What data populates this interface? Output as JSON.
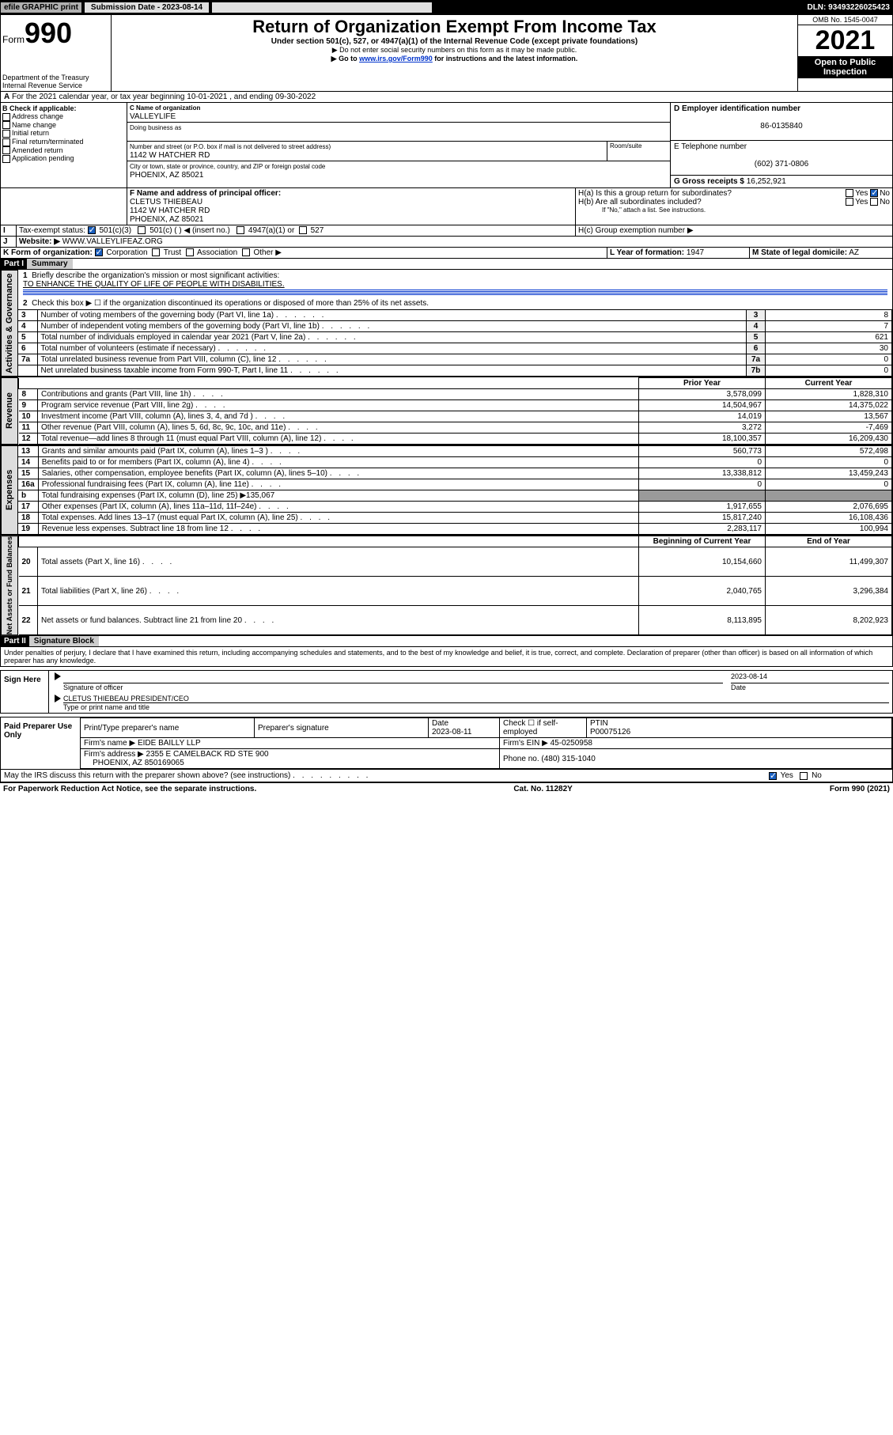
{
  "topbar": {
    "efile": "efile GRAPHIC print",
    "submission_label": "Submission Date - 2023-08-14",
    "dln": "DLN: 93493226025423"
  },
  "header": {
    "form_label": "Form",
    "form_number": "990",
    "dept": "Department of the Treasury\nInternal Revenue Service",
    "title": "Return of Organization Exempt From Income Tax",
    "subtitle": "Under section 501(c), 527, or 4947(a)(1) of the Internal Revenue Code (except private foundations)",
    "note1": "▶ Do not enter social security numbers on this form as it may be made public.",
    "note2_pre": "▶ Go to ",
    "note2_link": "www.irs.gov/Form990",
    "note2_post": " for instructions and the latest information.",
    "omb": "OMB No. 1545-0047",
    "year": "2021",
    "open": "Open to Public Inspection"
  },
  "periodA": "For the 2021 calendar year, or tax year beginning 10-01-2021   , and ending 09-30-2022",
  "sectionB": {
    "header": "B Check if applicable:",
    "opts": [
      "Address change",
      "Name change",
      "Initial return",
      "Final return/terminated",
      "Amended return",
      "Application pending"
    ]
  },
  "sectionC": {
    "label": "C Name of organization",
    "name": "VALLEYLIFE",
    "dba_label": "Doing business as",
    "addr_label": "Number and street (or P.O. box if mail is not delivered to street address)",
    "room_label": "Room/suite",
    "addr": "1142 W HATCHER RD",
    "city_label": "City or town, state or province, country, and ZIP or foreign postal code",
    "city": "PHOENIX, AZ  85021"
  },
  "sectionD": {
    "label": "D Employer identification number",
    "ein": "86-0135840"
  },
  "sectionE": {
    "label": "E Telephone number",
    "phone": "(602) 371-0806"
  },
  "sectionG": {
    "label": "G Gross receipts $",
    "amount": "16,252,921"
  },
  "sectionF": {
    "label": "F Name and address of principal officer:",
    "name": "CLETUS THIEBEAU",
    "addr1": "1142 W HATCHER RD",
    "addr2": "PHOENIX, AZ  85021"
  },
  "sectionH": {
    "a": "H(a)  Is this a group return for subordinates?",
    "b": "H(b)  Are all subordinates included?",
    "b_note": "If \"No,\" attach a list. See instructions.",
    "c": "H(c)  Group exemption number ▶",
    "yes": "Yes",
    "no": "No"
  },
  "sectionI": {
    "label": "Tax-exempt status:",
    "opt1": "501(c)(3)",
    "opt2": "501(c) (  ) ◀ (insert no.)",
    "opt3": "4947(a)(1) or",
    "opt4": "527"
  },
  "sectionJ": {
    "label": "Website: ▶",
    "url": "WWW.VALLEYLIFEAZ.ORG"
  },
  "sectionK": {
    "label": "K Form of organization:",
    "opts": [
      "Corporation",
      "Trust",
      "Association",
      "Other ▶"
    ]
  },
  "sectionL": {
    "label": "L Year of formation:",
    "val": "1947"
  },
  "sectionM": {
    "label": "M State of legal domicile:",
    "val": "AZ"
  },
  "partI": {
    "header": "Part I",
    "title": "Summary",
    "tabs": {
      "gov": "Activities & Governance",
      "rev": "Revenue",
      "exp": "Expenses",
      "net": "Net Assets or Fund Balances"
    },
    "line1_label": "Briefly describe the organization's mission or most significant activities:",
    "line1_val": "TO ENHANCE THE QUALITY OF LIFE OF PEOPLE WITH DISABILITIES.",
    "line2": "Check this box ▶ ☐ if the organization discontinued its operations or disposed of more than 25% of its net assets.",
    "col_prior": "Prior Year",
    "col_current": "Current Year",
    "col_beg": "Beginning of Current Year",
    "col_end": "End of Year",
    "rows_gov": [
      {
        "n": "3",
        "text": "Number of voting members of the governing body (Part VI, line 1a)",
        "lbl": "3",
        "val": "8"
      },
      {
        "n": "4",
        "text": "Number of independent voting members of the governing body (Part VI, line 1b)",
        "lbl": "4",
        "val": "7"
      },
      {
        "n": "5",
        "text": "Total number of individuals employed in calendar year 2021 (Part V, line 2a)",
        "lbl": "5",
        "val": "621"
      },
      {
        "n": "6",
        "text": "Total number of volunteers (estimate if necessary)",
        "lbl": "6",
        "val": "30"
      },
      {
        "n": "7a",
        "text": "Total unrelated business revenue from Part VIII, column (C), line 12",
        "lbl": "7a",
        "val": "0"
      },
      {
        "n": "",
        "text": "Net unrelated business taxable income from Form 990-T, Part I, line 11",
        "lbl": "7b",
        "val": "0"
      }
    ],
    "rows_rev": [
      {
        "n": "8",
        "text": "Contributions and grants (Part VIII, line 1h)",
        "p": "3,578,099",
        "c": "1,828,310"
      },
      {
        "n": "9",
        "text": "Program service revenue (Part VIII, line 2g)",
        "p": "14,504,967",
        "c": "14,375,022"
      },
      {
        "n": "10",
        "text": "Investment income (Part VIII, column (A), lines 3, 4, and 7d )",
        "p": "14,019",
        "c": "13,567"
      },
      {
        "n": "11",
        "text": "Other revenue (Part VIII, column (A), lines 5, 6d, 8c, 9c, 10c, and 11e)",
        "p": "3,272",
        "c": "-7,469"
      },
      {
        "n": "12",
        "text": "Total revenue—add lines 8 through 11 (must equal Part VIII, column (A), line 12)",
        "p": "18,100,357",
        "c": "16,209,430"
      }
    ],
    "rows_exp": [
      {
        "n": "13",
        "text": "Grants and similar amounts paid (Part IX, column (A), lines 1–3 )",
        "p": "560,773",
        "c": "572,498"
      },
      {
        "n": "14",
        "text": "Benefits paid to or for members (Part IX, column (A), line 4)",
        "p": "0",
        "c": "0"
      },
      {
        "n": "15",
        "text": "Salaries, other compensation, employee benefits (Part IX, column (A), lines 5–10)",
        "p": "13,338,812",
        "c": "13,459,243"
      },
      {
        "n": "16a",
        "text": "Professional fundraising fees (Part IX, column (A), line 11e)",
        "p": "0",
        "c": "0"
      },
      {
        "n": "b",
        "text": "Total fundraising expenses (Part IX, column (D), line 25) ▶135,067",
        "p": "",
        "c": "",
        "gray": true
      },
      {
        "n": "17",
        "text": "Other expenses (Part IX, column (A), lines 11a–11d, 11f–24e)",
        "p": "1,917,655",
        "c": "2,076,695"
      },
      {
        "n": "18",
        "text": "Total expenses. Add lines 13–17 (must equal Part IX, column (A), line 25)",
        "p": "15,817,240",
        "c": "16,108,436"
      },
      {
        "n": "19",
        "text": "Revenue less expenses. Subtract line 18 from line 12",
        "p": "2,283,117",
        "c": "100,994"
      }
    ],
    "rows_net": [
      {
        "n": "20",
        "text": "Total assets (Part X, line 16)",
        "p": "10,154,660",
        "c": "11,499,307"
      },
      {
        "n": "21",
        "text": "Total liabilities (Part X, line 26)",
        "p": "2,040,765",
        "c": "3,296,384"
      },
      {
        "n": "22",
        "text": "Net assets or fund balances. Subtract line 21 from line 20",
        "p": "8,113,895",
        "c": "8,202,923"
      }
    ]
  },
  "partII": {
    "header": "Part II",
    "title": "Signature Block",
    "penalties": "Under penalties of perjury, I declare that I have examined this return, including accompanying schedules and statements, and to the best of my knowledge and belief, it is true, correct, and complete. Declaration of preparer (other than officer) is based on all information of which preparer has any knowledge.",
    "sign_here": "Sign Here",
    "sig_officer": "Signature of officer",
    "date": "Date",
    "sig_date": "2023-08-14",
    "officer_name": "CLETUS THIEBEAU  PRESIDENT/CEO",
    "type_name": "Type or print name and title",
    "paid": "Paid Preparer Use Only",
    "prep_name_label": "Print/Type preparer's name",
    "prep_sig_label": "Preparer's signature",
    "prep_date_label": "Date",
    "prep_date": "2023-08-11",
    "check_if": "Check ☐ if self-employed",
    "ptin_label": "PTIN",
    "ptin": "P00075126",
    "firm_name_label": "Firm's name    ▶",
    "firm_name": "EIDE BAILLY LLP",
    "firm_ein_label": "Firm's EIN ▶",
    "firm_ein": "45-0250958",
    "firm_addr_label": "Firm's address ▶",
    "firm_addr1": "2355 E CAMELBACK RD STE 900",
    "firm_addr2": "PHOENIX, AZ  850169065",
    "phone_label": "Phone no.",
    "phone": "(480) 315-1040",
    "may_irs": "May the IRS discuss this return with the preparer shown above? (see instructions)",
    "yes": "Yes",
    "no": "No"
  },
  "footer": {
    "left": "For Paperwork Reduction Act Notice, see the separate instructions.",
    "mid": "Cat. No. 11282Y",
    "right": "Form 990 (2021)"
  }
}
